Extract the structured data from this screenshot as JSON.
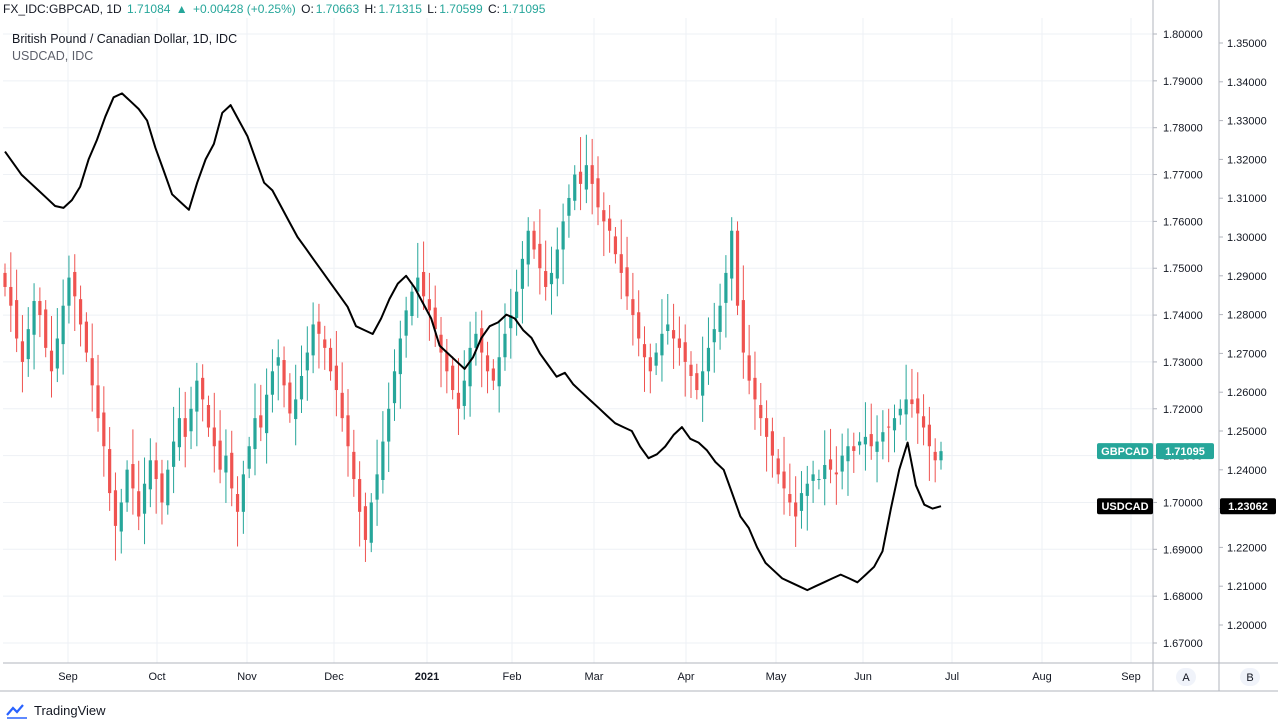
{
  "header": {
    "symbol": "FX_IDC:GBPCAD, 1D",
    "last": "1.71084",
    "change": "+0.00428 (+0.25%)",
    "open_label": "O:",
    "open": "1.70663",
    "high_label": "H:",
    "high": "1.71315",
    "low_label": "L:",
    "low": "1.70599",
    "close_label": "C:",
    "close": "1.71095"
  },
  "legend": {
    "main": "British Pound / Canadian Dollar, 1D, IDC",
    "compare": "USDCAD, IDC"
  },
  "footer": {
    "brand": "TradingView"
  },
  "scale_buttons": {
    "a": "A",
    "b": "B"
  },
  "colors": {
    "up": "#26a69a",
    "down": "#ef5350",
    "line": "#000000",
    "grid": "#e8ecf0"
  },
  "chart_data": {
    "type": "line",
    "x_tick_labels": [
      "Sep",
      "Oct",
      "Nov",
      "Dec",
      "2021",
      "Feb",
      "Mar",
      "Apr",
      "May",
      "Jun",
      "Jul",
      "Aug",
      "Sep"
    ],
    "left_axis_ticks": [
      "1.80000",
      "1.79000",
      "1.78000",
      "1.77000",
      "1.76000",
      "1.75000",
      "1.74000",
      "1.73000",
      "1.72000",
      "1.71000",
      "1.70000",
      "1.69000",
      "1.68000",
      "1.67000"
    ],
    "right_axis_ticks": [
      "1.35000",
      "1.34000",
      "1.33000",
      "1.32000",
      "1.31000",
      "1.30000",
      "1.29000",
      "1.28000",
      "1.27000",
      "1.26000",
      "1.25000",
      "1.24000",
      "1.23000",
      "1.22000",
      "1.21000",
      "1.20000"
    ],
    "gbpcad_range": [
      1.662,
      1.803
    ],
    "usdcad_range": [
      1.192,
      1.355
    ],
    "series": [
      {
        "name": "GBPCAD",
        "kind": "candlestick",
        "color_up": "#26a69a",
        "color_down": "#ef5350",
        "last_label": "GBPCAD",
        "last_value": "1.71095",
        "close": [
          1.746,
          1.742,
          1.735,
          1.73,
          1.737,
          1.743,
          1.74,
          1.733,
          1.728,
          1.735,
          1.742,
          1.748,
          1.744,
          1.738,
          1.732,
          1.725,
          1.718,
          1.712,
          1.702,
          1.695,
          1.7,
          1.707,
          1.703,
          1.697,
          1.704,
          1.709,
          1.705,
          1.7,
          1.707,
          1.713,
          1.718,
          1.714,
          1.72,
          1.726,
          1.722,
          1.716,
          1.712,
          1.707,
          1.71,
          1.703,
          1.698,
          1.706,
          1.712,
          1.718,
          1.716,
          1.723,
          1.728,
          1.731,
          1.725,
          1.719,
          1.722,
          1.727,
          1.732,
          1.738,
          1.736,
          1.733,
          1.728,
          1.724,
          1.718,
          1.712,
          1.705,
          1.698,
          1.692,
          1.7,
          1.706,
          1.713,
          1.72,
          1.728,
          1.735,
          1.741,
          1.745,
          1.748,
          1.744,
          1.741,
          1.737,
          1.732,
          1.728,
          1.724,
          1.72,
          1.726,
          1.733,
          1.736,
          1.732,
          1.728,
          1.726,
          1.731,
          1.736,
          1.74,
          1.745,
          1.752,
          1.758,
          1.754,
          1.75,
          1.746,
          1.749,
          1.754,
          1.76,
          1.765,
          1.77,
          1.768,
          1.772,
          1.768,
          1.763,
          1.76,
          1.758,
          1.753,
          1.749,
          1.744,
          1.74,
          1.735,
          1.731,
          1.728,
          1.732,
          1.736,
          1.738,
          1.735,
          1.733,
          1.73,
          1.727,
          1.724,
          1.728,
          1.733,
          1.737,
          1.742,
          1.749,
          1.758,
          1.742,
          1.732,
          1.726,
          1.722,
          1.718,
          1.714,
          1.71,
          1.706,
          1.703,
          1.7,
          1.697,
          1.702,
          1.704,
          1.706,
          1.705,
          1.708,
          1.707,
          1.706,
          1.71,
          1.712,
          1.711,
          1.713,
          1.714,
          1.712,
          1.713,
          1.715,
          1.716,
          1.718,
          1.72,
          1.722,
          1.721,
          1.719,
          1.716,
          1.712,
          1.709,
          1.71095
        ]
      },
      {
        "name": "USDCAD",
        "kind": "line",
        "color": "#000000",
        "last_label": "USDCAD",
        "last_value": "1.23062",
        "values": [
          1.322,
          1.319,
          1.316,
          1.314,
          1.312,
          1.31,
          1.308,
          1.3075,
          1.3095,
          1.313,
          1.32,
          1.325,
          1.331,
          1.336,
          1.337,
          1.335,
          1.333,
          1.33,
          1.323,
          1.317,
          1.311,
          1.309,
          1.307,
          1.314,
          1.32,
          1.324,
          1.332,
          1.334,
          1.33,
          1.326,
          1.32,
          1.314,
          1.312,
          1.308,
          1.304,
          1.3,
          1.297,
          1.294,
          1.291,
          1.288,
          1.285,
          1.282,
          1.277,
          1.276,
          1.275,
          1.279,
          1.284,
          1.288,
          1.29,
          1.287,
          1.283,
          1.279,
          1.272,
          1.27,
          1.268,
          1.266,
          1.269,
          1.274,
          1.277,
          1.278,
          1.28,
          1.279,
          1.276,
          1.274,
          1.27,
          1.267,
          1.264,
          1.265,
          1.262,
          1.26,
          1.258,
          1.256,
          1.254,
          1.252,
          1.251,
          1.25,
          1.246,
          1.243,
          1.244,
          1.246,
          1.249,
          1.251,
          1.248,
          1.247,
          1.245,
          1.242,
          1.24,
          1.234,
          1.228,
          1.225,
          1.22,
          1.216,
          1.214,
          1.212,
          1.211,
          1.21,
          1.209,
          1.21,
          1.211,
          1.212,
          1.213,
          1.212,
          1.211,
          1.213,
          1.215,
          1.219,
          1.23,
          1.24,
          1.247,
          1.236,
          1.231,
          1.23,
          1.23062
        ]
      }
    ]
  }
}
